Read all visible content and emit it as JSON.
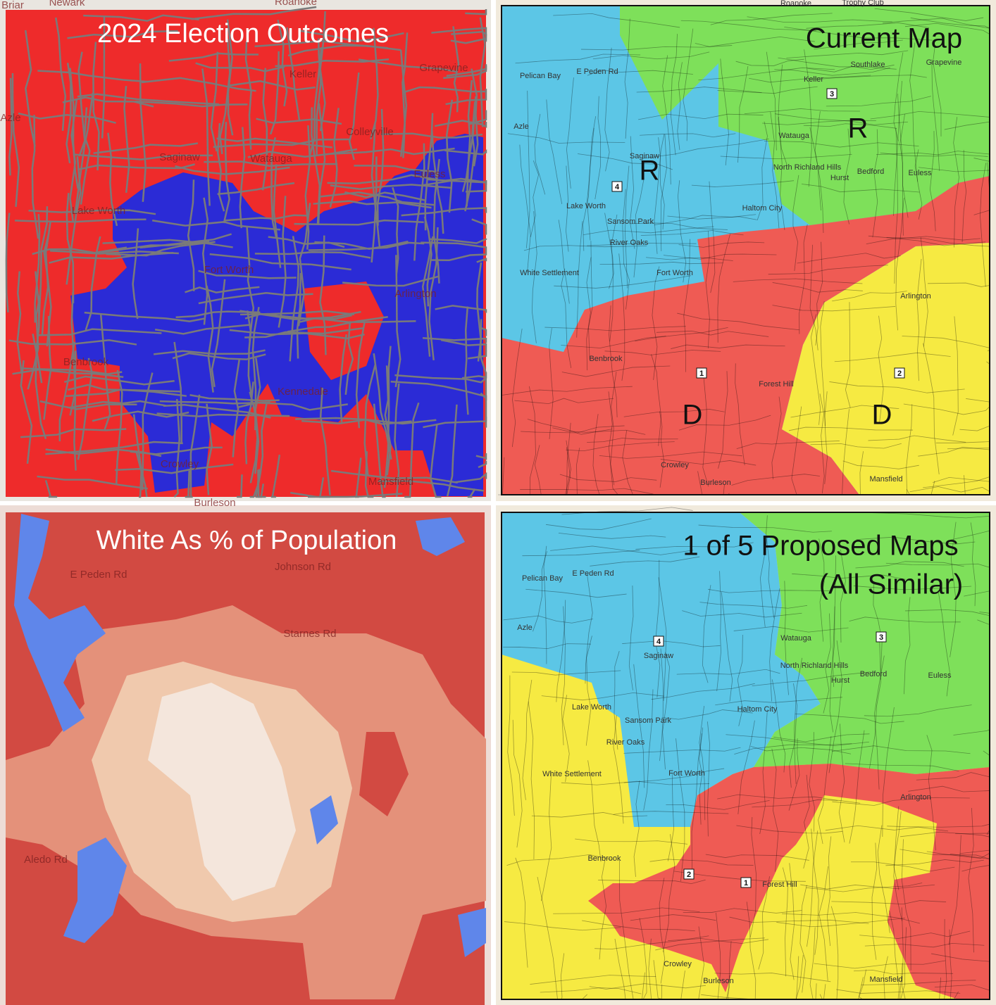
{
  "panels": [
    {
      "title": "2024 Election Outcomes",
      "places": [
        "Briar",
        "Newark",
        "Roanoke",
        "Keller",
        "Grapevine",
        "Azle",
        "Colleyville",
        "Saginaw",
        "Watauga",
        "Euless",
        "Lake Worth",
        "Fort Worth",
        "Arlington",
        "Benbrook",
        "Kennedale",
        "Crowley",
        "Mansfield",
        "Burleson"
      ]
    },
    {
      "title": "Current Map",
      "districts": [
        "R",
        "R",
        "D",
        "D"
      ],
      "district_numbers": [
        4,
        3,
        1,
        2
      ],
      "places": [
        "Roanoke",
        "Trophy Club",
        "Pelican Bay",
        "E Peden Rd",
        "Azle",
        "Keller",
        "Southlake",
        "Grapevine",
        "Watauga",
        "North Richland Hills",
        "Hurst",
        "Bedford",
        "Euless",
        "Saginaw",
        "Lake Worth",
        "Sansom Park",
        "River Oaks",
        "Haltom City",
        "White Settlement",
        "Fort Worth",
        "Arlington",
        "Benbrook",
        "Forest Hill",
        "Crowley",
        "Burleson",
        "Mansfield"
      ]
    },
    {
      "title": "White As % of Population",
      "places": [
        "E Peden Rd",
        "Johnson Rd",
        "Starnes Rd",
        "Aledo Rd"
      ]
    },
    {
      "title_lines": [
        "1 of 5 Proposed Maps",
        "(All Similar)"
      ],
      "district_numbers": [
        4,
        3,
        2,
        1
      ],
      "places": [
        "Pelican Bay",
        "E Peden Rd",
        "Azle",
        "Saginaw",
        "Watauga",
        "North Richland Hills",
        "Hurst",
        "Bedford",
        "Euless",
        "Lake Worth",
        "Sansom Park",
        "River Oaks",
        "Haltom City",
        "White Settlement",
        "Fort Worth",
        "Arlington",
        "Benbrook",
        "Forest Hill",
        "Crowley",
        "Burleson",
        "Mansfield"
      ]
    }
  ]
}
